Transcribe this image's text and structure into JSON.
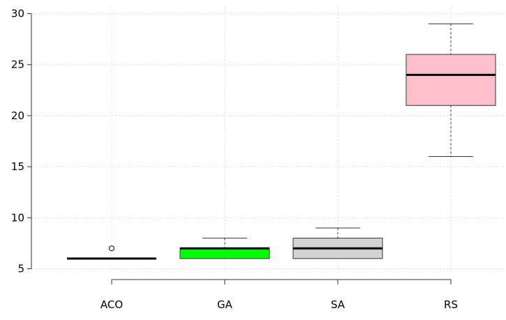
{
  "chart_data": {
    "type": "boxplot",
    "title": "",
    "xlabel": "",
    "ylabel": "",
    "ylim": [
      4.5,
      30
    ],
    "yticks": [
      5,
      10,
      15,
      20,
      25,
      30
    ],
    "grid": true,
    "categories": [
      "ACO",
      "GA",
      "SA",
      "RS"
    ],
    "boxes": [
      {
        "name": "ACO",
        "min": 6,
        "q1": 6,
        "median": 6,
        "q3": 6,
        "max": 6,
        "outliers": [
          7
        ],
        "color": "#ffffff"
      },
      {
        "name": "GA",
        "min": 6,
        "q1": 6,
        "median": 7,
        "q3": 7,
        "max": 8,
        "outliers": [],
        "color": "#00ff00"
      },
      {
        "name": "SA",
        "min": 6,
        "q1": 6,
        "median": 7,
        "q3": 8,
        "max": 9,
        "outliers": [],
        "color": "#d3d3d3"
      },
      {
        "name": "RS",
        "min": 16,
        "q1": 21,
        "median": 24,
        "q3": 26,
        "max": 29,
        "outliers": [],
        "color": "#ffc0cb"
      }
    ]
  }
}
